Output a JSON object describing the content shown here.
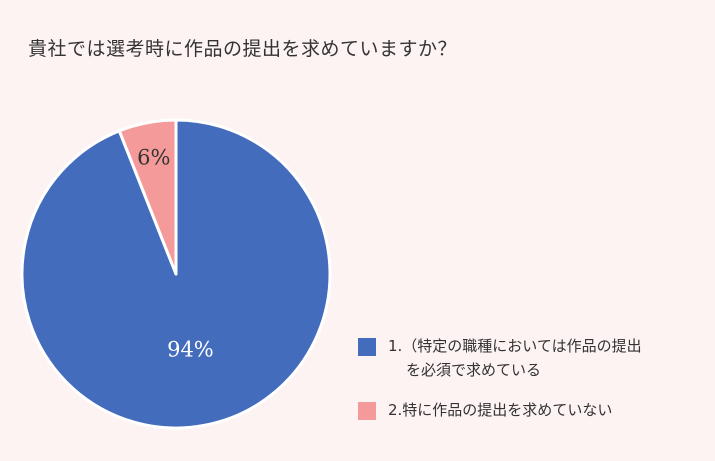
{
  "title": "貴社では選考時に作品の提出を求めていますか？",
  "colors": {
    "background": "#fdf3f3",
    "slice_1": "#446cbd",
    "slice_2": "#f59a9a",
    "slice_border": "#ffffff",
    "label_on_blue": "#ffffff",
    "label_on_pink": "#333333"
  },
  "chart_data": {
    "type": "pie",
    "start_angle_deg": 0,
    "direction": "clockwise",
    "slices": [
      {
        "label": "1.（特定の職種においては作品の提出を必須で求めている",
        "legend_line1": "1.（特定の職種においては作品の提出",
        "legend_line2": "を必須で求めている",
        "value": 94,
        "display": "94%",
        "color": "#446cbd"
      },
      {
        "label": "2.特に作品の提出を求めていない",
        "legend_line1": "2.特に作品の提出を求めていない",
        "legend_line2": "",
        "value": 6,
        "display": "6%",
        "color": "#f59a9a"
      }
    ],
    "legend_position": "bottom-right"
  }
}
